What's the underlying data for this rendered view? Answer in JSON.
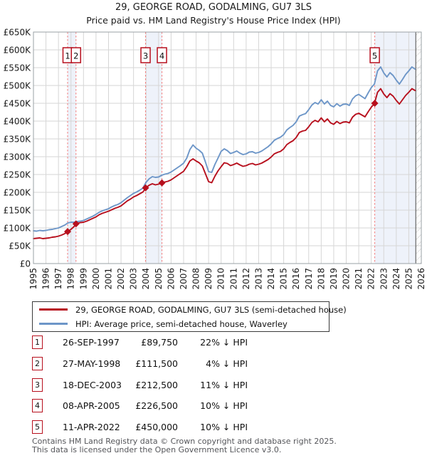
{
  "title": "29, GEORGE ROAD, GODALMING, GU7 3LS",
  "subtitle": "Price paid vs. HM Land Registry's House Price Index (HPI)",
  "colors": {
    "property_red": "#b70f1d",
    "hpi_blue": "#6d96c8",
    "sale_dash_red": "#f37b7b",
    "band_fill": "#e3eaf7",
    "grid": "#d6d6d6",
    "plot_border": "#9aa0a6",
    "hatch_line": "#c4c4c4",
    "axis_text": "#1a1a1a"
  },
  "legend": {
    "items": [
      {
        "label": "29, GEORGE ROAD, GODALMING, GU7 3LS (semi-detached house)",
        "color": "#b70f1d"
      },
      {
        "label": "HPI: Average price, semi-detached house, Waverley",
        "color": "#6d96c8"
      }
    ]
  },
  "footer": {
    "line1": "Contains HM Land Registry data © Crown copyright and database right 2025.",
    "line2": "This data is licensed under the Open Government Licence v3.0."
  },
  "chart_data": {
    "type": "line",
    "title": "29, GEORGE ROAD, GODALMING, GU7 3LS — Price paid vs. HPI",
    "xlabel": "",
    "ylabel": "",
    "unit": "GBP thousands",
    "xlim": [
      1995,
      2026
    ],
    "ylim_k": [
      0,
      650
    ],
    "grid": true,
    "x_ticks": [
      1995,
      1996,
      1997,
      1998,
      1999,
      2000,
      2001,
      2002,
      2003,
      2004,
      2005,
      2006,
      2007,
      2008,
      2009,
      2010,
      2011,
      2012,
      2013,
      2014,
      2015,
      2016,
      2017,
      2018,
      2019,
      2020,
      2021,
      2022,
      2023,
      2024,
      2025,
      2026
    ],
    "y_tick_labels": [
      "£0",
      "£50K",
      "£100K",
      "£150K",
      "£200K",
      "£250K",
      "£300K",
      "£350K",
      "£400K",
      "£450K",
      "£500K",
      "£550K",
      "£600K",
      "£650K"
    ],
    "series": [
      {
        "name": "29, GEORGE ROAD, GODALMING, GU7 3LS (semi-detached house)",
        "color": "#b70f1d",
        "start": 1995,
        "step": 0.25,
        "values": [
          70,
          71,
          72,
          70,
          71,
          72,
          74,
          75,
          77,
          80,
          84,
          90,
          96,
          104,
          113,
          115,
          116,
          119,
          123,
          127,
          131,
          137,
          141,
          144,
          147,
          151,
          155,
          158,
          162,
          169,
          176,
          181,
          187,
          191,
          196,
          201,
          213,
          220,
          224,
          221,
          223,
          226,
          229,
          231,
          235,
          241,
          247,
          253,
          259,
          272,
          288,
          294,
          288,
          283,
          274,
          252,
          230,
          227,
          245,
          260,
          272,
          283,
          281,
          275,
          278,
          282,
          277,
          273,
          275,
          279,
          281,
          277,
          279,
          282,
          287,
          292,
          299,
          308,
          312,
          315,
          322,
          334,
          340,
          345,
          354,
          368,
          372,
          374,
          384,
          396,
          402,
          398,
          409,
          398,
          406,
          395,
          391,
          399,
          393,
          397,
          398,
          395,
          411,
          419,
          422,
          417,
          412,
          426,
          439,
          449,
          481,
          491,
          476,
          466,
          477,
          470,
          458,
          448,
          460,
          472,
          481,
          491,
          486
        ]
      },
      {
        "name": "HPI: Average price, semi-detached house, Waverley",
        "color": "#6d96c8",
        "start": 1995,
        "step": 0.25,
        "values": [
          92,
          91,
          93,
          92,
          93,
          95,
          96,
          98,
          100,
          104,
          108,
          114,
          116,
          116,
          118,
          119,
          121,
          125,
          129,
          133,
          138,
          144,
          148,
          151,
          154,
          159,
          163,
          166,
          171,
          178,
          185,
          191,
          197,
          201,
          206,
          212,
          228,
          238,
          244,
          242,
          243,
          248,
          251,
          253,
          257,
          263,
          269,
          275,
          282,
          296,
          320,
          333,
          324,
          318,
          310,
          285,
          258,
          256,
          278,
          296,
          315,
          322,
          317,
          309,
          312,
          316,
          310,
          306,
          308,
          313,
          314,
          310,
          312,
          316,
          322,
          328,
          336,
          346,
          351,
          355,
          362,
          375,
          382,
          388,
          398,
          414,
          418,
          421,
          432,
          445,
          452,
          448,
          460,
          448,
          456,
          444,
          440,
          449,
          442,
          447,
          448,
          444,
          462,
          471,
          475,
          469,
          463,
          479,
          494,
          504,
          541,
          552,
          535,
          524,
          536,
          528,
          515,
          504,
          517,
          531,
          541,
          552,
          546
        ]
      }
    ],
    "sales": [
      {
        "label": "1",
        "date": "26-SEP-1997",
        "price": "£89,750",
        "price_k": 89.75,
        "year": 1997.73,
        "hpi_diff": "22% ↓ HPI"
      },
      {
        "label": "2",
        "date": "27-MAY-1998",
        "price": "£111,500",
        "price_k": 111.5,
        "year": 1998.4,
        "hpi_diff": "4% ↓ HPI"
      },
      {
        "label": "3",
        "date": "18-DEC-2003",
        "price": "£212,500",
        "price_k": 212.5,
        "year": 2003.96,
        "hpi_diff": "11% ↓ HPI"
      },
      {
        "label": "4",
        "date": "08-APR-2005",
        "price": "£226,500",
        "price_k": 226.5,
        "year": 2005.27,
        "hpi_diff": "10% ↓ HPI"
      },
      {
        "label": "5",
        "date": "11-APR-2022",
        "price": "£450,000",
        "price_k": 450,
        "year": 2022.28,
        "hpi_diff": "10% ↓ HPI"
      }
    ],
    "ownership_bands": [
      [
        1997.73,
        1998.4
      ],
      [
        2003.96,
        2005.27
      ],
      [
        2022.28,
        2025.56
      ]
    ],
    "future_hatch_start": 2025.56,
    "legend_position": "below"
  }
}
